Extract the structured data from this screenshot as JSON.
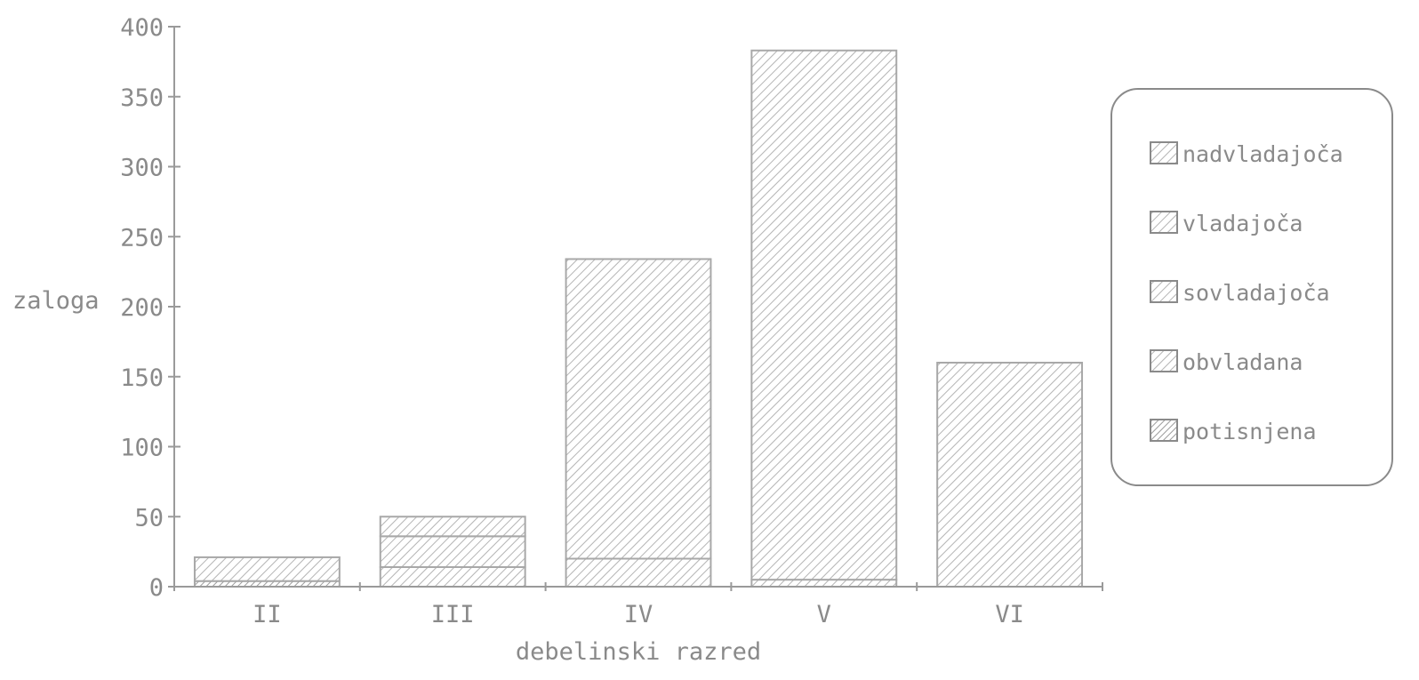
{
  "chart_data": {
    "type": "bar",
    "stacked": true,
    "title": "",
    "xlabel": "debelinski razred",
    "ylabel": "zaloga",
    "ylim": [
      0,
      400
    ],
    "yticks": [
      "0",
      "50",
      "100",
      "150",
      "200",
      "250",
      "300",
      "350",
      "400"
    ],
    "categories": [
      "II",
      "III",
      "IV",
      "V",
      "VI"
    ],
    "series": [
      {
        "name": "nadvladajoča",
        "values": [
          0,
          0,
          0,
          0,
          0
        ]
      },
      {
        "name": "vladajoča",
        "values": [
          0,
          14,
          214,
          378,
          160
        ]
      },
      {
        "name": "sovladajoča",
        "values": [
          0,
          22,
          20,
          5,
          0
        ]
      },
      {
        "name": "obvladana",
        "values": [
          17,
          14,
          0,
          0,
          0
        ]
      },
      {
        "name": "potisnjena",
        "values": [
          4,
          0,
          0,
          0,
          0
        ]
      }
    ],
    "legend_position": "right",
    "grid": false,
    "colors": {
      "axis": "#9a9a9a",
      "hatch": "#b0b0b0",
      "text": "#8a8a8a"
    }
  }
}
